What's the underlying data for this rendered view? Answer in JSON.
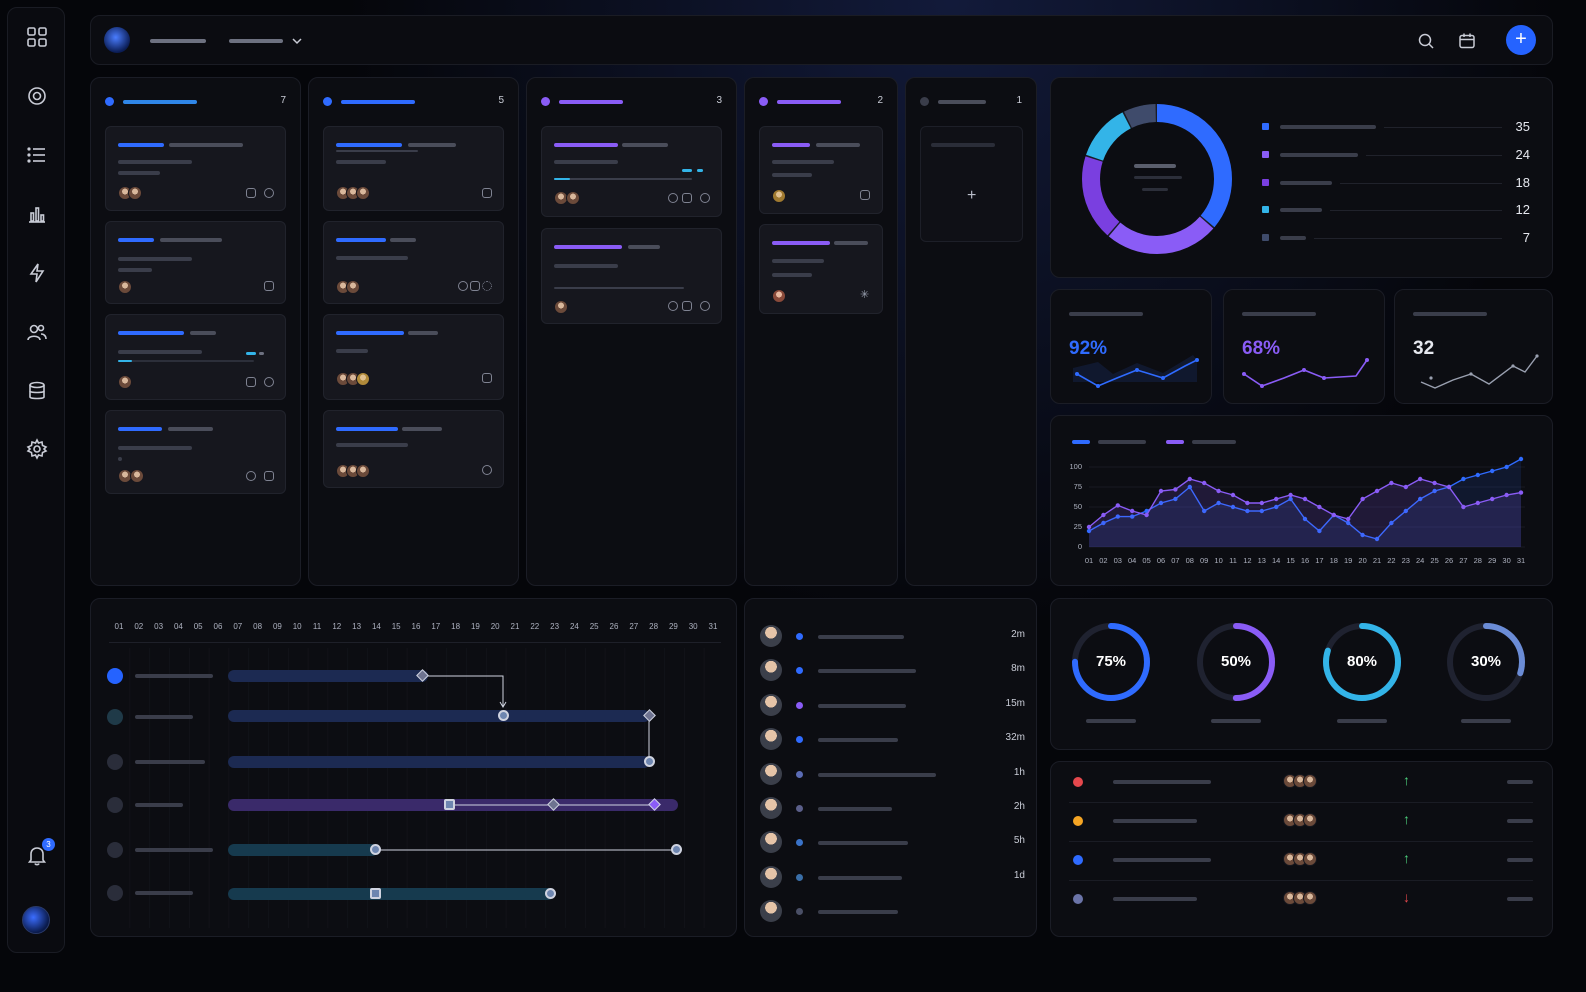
{
  "colors": {
    "accent_blue": "#2f6bff",
    "accent_purple": "#8a5cf6",
    "accent_cyan": "#33b4e8",
    "danger": "#e5484d",
    "warning": "#f5a524",
    "success": "#4cd07d"
  },
  "sidebar": {
    "items": [
      {
        "icon": "grid-icon"
      },
      {
        "icon": "target-icon"
      },
      {
        "icon": "list-icon"
      },
      {
        "icon": "bar-chart-icon"
      },
      {
        "icon": "lightning-icon"
      },
      {
        "icon": "users-icon"
      },
      {
        "icon": "database-icon"
      },
      {
        "icon": "gear-icon"
      }
    ],
    "notification_count": "3"
  },
  "kanban": {
    "columns": [
      {
        "count": "7",
        "color": "#2f6bff"
      },
      {
        "count": "5",
        "color": "#2f6bff"
      },
      {
        "count": "3",
        "color": "#8a5cf6"
      },
      {
        "count": "2",
        "color": "#8a5cf6"
      },
      {
        "count": "1",
        "color": "#5b5f70"
      }
    ],
    "add_label": "+"
  },
  "donut": {
    "segments": [
      {
        "value": 35,
        "color": "#2f6bff"
      },
      {
        "value": 24,
        "color": "#8a5cf6"
      },
      {
        "value": 18,
        "color": "#7a3fe0"
      },
      {
        "value": 12,
        "color": "#33b4e8"
      },
      {
        "value": 7,
        "color": "#3f4b6b"
      }
    ],
    "legend_values": [
      "35",
      "24",
      "18",
      "12",
      "7"
    ]
  },
  "kpis": [
    {
      "value": "92%",
      "color": "#2f6bff"
    },
    {
      "value": "68%",
      "color": "#8a5cf6"
    },
    {
      "value": "32",
      "color": "#e6e8ef"
    }
  ],
  "chart_data": {
    "type": "line",
    "x": [
      "01",
      "02",
      "03",
      "04",
      "05",
      "06",
      "07",
      "08",
      "09",
      "10",
      "11",
      "12",
      "13",
      "14",
      "15",
      "16",
      "17",
      "18",
      "19",
      "20",
      "21",
      "22",
      "23",
      "24",
      "25",
      "26",
      "27",
      "28",
      "29",
      "30",
      "31"
    ],
    "ylim": [
      0,
      100
    ],
    "yticks": [
      "100",
      "75",
      "50",
      "25",
      "0"
    ],
    "series": [
      {
        "color": "#2f6bff",
        "values": [
          20,
          30,
          38,
          38,
          45,
          55,
          60,
          75,
          45,
          55,
          50,
          45,
          45,
          50,
          60,
          35,
          20,
          40,
          30,
          15,
          10,
          30,
          45,
          60,
          70,
          75,
          85,
          90,
          95,
          100,
          110
        ]
      },
      {
        "color": "#8a5cf6",
        "values": [
          25,
          40,
          52,
          45,
          40,
          70,
          72,
          85,
          80,
          70,
          65,
          55,
          55,
          60,
          65,
          60,
          50,
          40,
          35,
          60,
          70,
          80,
          75,
          85,
          80,
          75,
          50,
          55,
          60,
          65,
          68
        ]
      }
    ]
  },
  "gantt": {
    "days": [
      "01",
      "02",
      "03",
      "04",
      "05",
      "06",
      "07",
      "08",
      "09",
      "10",
      "11",
      "12",
      "13",
      "14",
      "15",
      "16",
      "17",
      "18",
      "19",
      "20",
      "21",
      "22",
      "23",
      "24",
      "25",
      "26",
      "27",
      "28",
      "29",
      "30",
      "31"
    ]
  },
  "activity": {
    "items": [
      {
        "time": "2m",
        "color": "#2f6bff"
      },
      {
        "time": "8m",
        "color": "#2f6bff"
      },
      {
        "time": "15m",
        "color": "#8a5cf6"
      },
      {
        "time": "32m",
        "color": "#2f6bff"
      },
      {
        "time": "1h",
        "color": "#5b6cb5"
      },
      {
        "time": "2h",
        "color": "#5b5f8a"
      },
      {
        "time": "5h",
        "color": "#3a73c9"
      },
      {
        "time": "1d",
        "color": "#3a6fa8"
      },
      {
        "time": "",
        "color": "#4a4f66"
      }
    ]
  },
  "progress_rings": [
    {
      "label": "75%",
      "value": 75,
      "color": "#2f6bff"
    },
    {
      "label": "50%",
      "value": 50,
      "color": "#8a5cf6"
    },
    {
      "label": "80%",
      "value": 80,
      "color": "#33b4e8"
    },
    {
      "label": "30%",
      "value": 30,
      "color": "#6b8cd6"
    }
  ],
  "tasks_table": {
    "rows": [
      {
        "dot": "#e5484d",
        "arrow": "↑",
        "arrow_color": "#4cd07d"
      },
      {
        "dot": "#f5a524",
        "arrow": "↑",
        "arrow_color": "#4cd07d"
      },
      {
        "dot": "#2f6bff",
        "arrow": "↑",
        "arrow_color": "#4cd07d"
      },
      {
        "dot": "#6b74a8",
        "arrow": "↓",
        "arrow_color": "#e5484d"
      }
    ]
  },
  "topbar": {
    "add_label": "+"
  }
}
